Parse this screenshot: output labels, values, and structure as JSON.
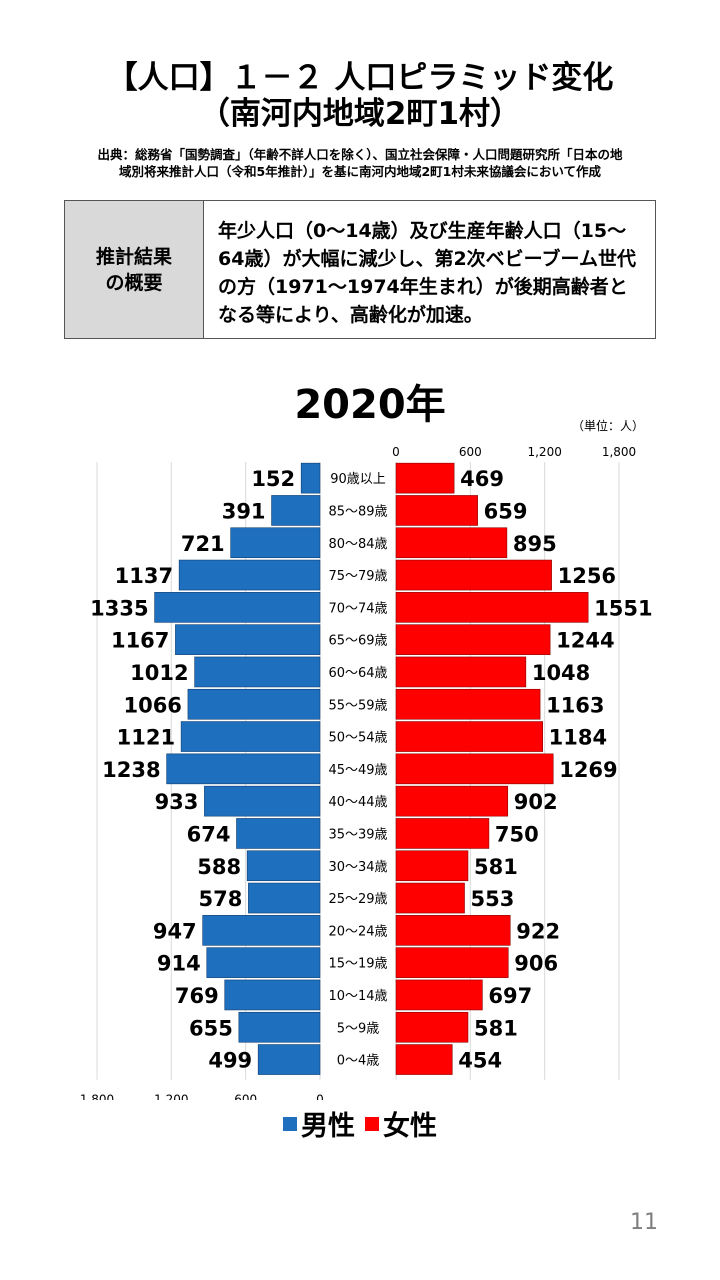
{
  "header": {
    "title_line1": "【人口】１－２ 人口ピラミッド変化",
    "title_line2": "（南河内地域2町1村）",
    "source_line1": "出典：総務省「国勢調査」（年齢不詳人口を除く）、国立社会保障・人口問題研究所「日本の地",
    "source_line2": "域別将来推計人口（令和5年推計）」を基に南河内地域2町1村未来協議会において作成"
  },
  "summary": {
    "label": "推計結果\nの概要",
    "text": "年少人口（0～14歳）及び生産年齢人口（15～64歳）が大幅に減少し、第2次ベビーブーム世代の方（1971～1974年生まれ）が後期高齢者となる等により、高齢化が加速。"
  },
  "chart_data": {
    "type": "bar",
    "title": "2020年",
    "unit": "（単位：人）",
    "categories": [
      "90歳以上",
      "85～89歳",
      "80～84歳",
      "75～79歳",
      "70～74歳",
      "65～69歳",
      "60～64歳",
      "55～59歳",
      "50～54歳",
      "45～49歳",
      "40～44歳",
      "35～39歳",
      "30～34歳",
      "25～29歳",
      "20～24歳",
      "15～19歳",
      "10～14歳",
      "5～9歳",
      "0～4歳"
    ],
    "series": [
      {
        "name": "男性",
        "color": "#1f6fbf",
        "values": [
          152,
          391,
          721,
          1137,
          1335,
          1167,
          1012,
          1066,
          1121,
          1238,
          933,
          674,
          588,
          578,
          947,
          914,
          769,
          655,
          499
        ]
      },
      {
        "name": "女性",
        "color": "#ff0000",
        "values": [
          469,
          659,
          895,
          1256,
          1551,
          1244,
          1048,
          1163,
          1184,
          1269,
          902,
          750,
          581,
          553,
          922,
          906,
          697,
          581,
          454
        ]
      }
    ],
    "male_axis_ticks": [
      "1,800",
      "1,200",
      "600",
      "0"
    ],
    "female_axis_ticks": [
      "0",
      "600",
      "1,200",
      "1,800"
    ],
    "xlim": [
      0,
      1800
    ],
    "grid": true
  },
  "page_number": "11"
}
